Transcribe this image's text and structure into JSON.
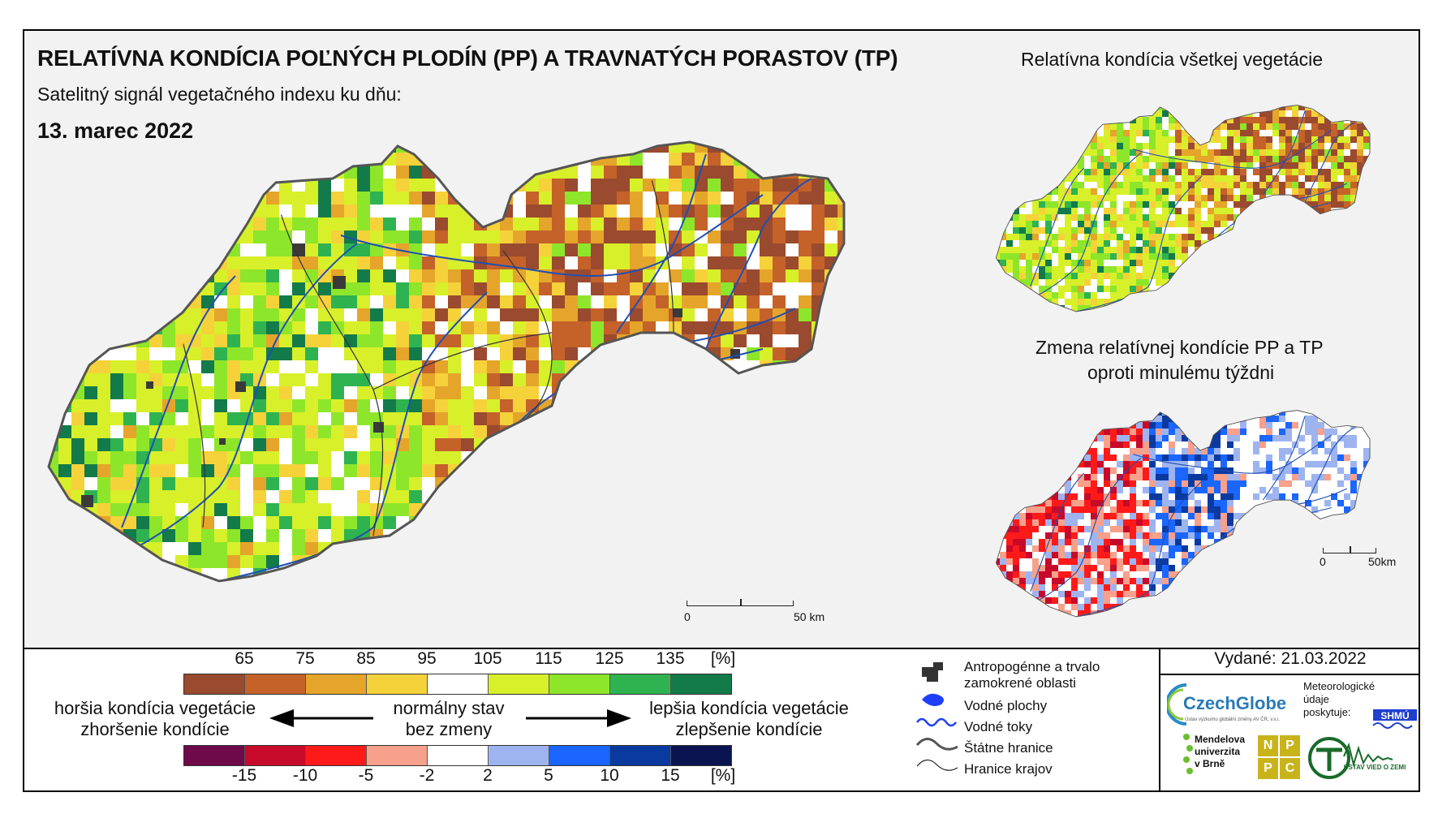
{
  "header": {
    "title": "RELATÍVNA KONDÍCIA POĽNÝCH PLODÍN (PP) A TRAVNATÝCH PORASTOV (TP)",
    "subtitle": "Satelitný signál vegetačného indexu ku dňu:",
    "date": "13. marec 2022"
  },
  "insets": {
    "all_vegetation_title": "Relatívna kondícia všetkej vegetácie",
    "change_title_line1": "Zmena relatívnej kondície PP a TP",
    "change_title_line2": "oproti minulému týždni"
  },
  "scalebar_main": {
    "start": "0",
    "end": "50 km"
  },
  "scalebar_inset": {
    "start": "0",
    "end": "50km"
  },
  "legend": {
    "condition_ticks": [
      "65",
      "75",
      "85",
      "95",
      "105",
      "115",
      "125",
      "135",
      "[%]"
    ],
    "condition_colors": [
      "#9a4a2e",
      "#c4622a",
      "#e5a52a",
      "#f5d23a",
      "#ffffff",
      "#d7f02a",
      "#8ee62a",
      "#2fb350",
      "#137a4a"
    ],
    "change_ticks": [
      "-15",
      "-10",
      "-5",
      "-2",
      "2",
      "5",
      "10",
      "15",
      "[%]"
    ],
    "change_colors": [
      "#6e0a4a",
      "#c80a2a",
      "#ff1a1a",
      "#f7a08c",
      "#ffffff",
      "#9db4f0",
      "#1a66ff",
      "#0a3aa0",
      "#0a1450"
    ],
    "worse_line1": "horšia kondícia vegetácie",
    "worse_line2": "zhoršenie kondície",
    "normal_line1": "normálny stav",
    "normal_line2": "bez zmeny",
    "better_line1": "lepšia kondícia vegetácie",
    "better_line2": "zlepšenie kondície"
  },
  "map_legend": {
    "anthropogenic_line1": "Antropogénne a trvalo",
    "anthropogenic_line2": "zamokrené oblasti",
    "water_areas": "Vodné plochy",
    "water_streams": "Vodné toky",
    "state_border": "Štátne hranice",
    "region_border": "Hranice krajov"
  },
  "publisher": {
    "issued": "Vydané: 21.03.2022",
    "czechglobe": "CzechGlobe",
    "czechglobe_sub": "Ústav výzkumu globální změny AV ČR, v.v.i.",
    "meteo_line1": "Meteorologické",
    "meteo_line2": "údaje",
    "meteo_line3": "poskytuje:",
    "shmu": "SHMÚ",
    "mendel_line1": "Mendelova",
    "mendel_line2": "univerzita",
    "mendel_line3": "v Brně",
    "nppc": [
      "N",
      "P",
      "P",
      "C"
    ],
    "uvz": "ÚSTAV VIED O ZEMI"
  },
  "colors": {
    "river": "#1f4fb5",
    "border": "#555555",
    "urban": "#3a3a3a"
  }
}
